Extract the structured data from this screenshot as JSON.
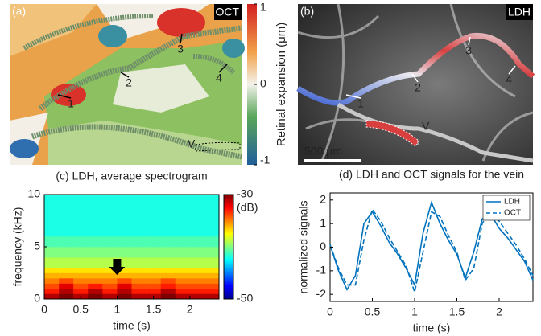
{
  "images": [
    {
      "label": "(a)",
      "tag": "OCT",
      "markers": [
        "1",
        "2",
        "3",
        "4"
      ],
      "vein": "V",
      "colorbar": {
        "label": "Retinal expansion (μm)",
        "lim": [
          -1,
          1
        ],
        "ticks": [
          1,
          0,
          -1
        ]
      }
    },
    {
      "label": "(b)",
      "tag": "LDH",
      "markers": [
        "1",
        "2",
        "3",
        "4"
      ],
      "vein": "V",
      "scalebar": "500 μm"
    }
  ],
  "chart_data": [
    {
      "type": "heatmap",
      "title": "(c) LDH, average spectrogram",
      "xlabel": "time (s)",
      "ylabel": "frequency (kHz)",
      "xbins": [
        0,
        0.2,
        0.4,
        0.6,
        0.8,
        1.0,
        1.2,
        1.4,
        1.6,
        1.8,
        2.0,
        2.2,
        2.4
      ],
      "ybins": [
        0,
        0.5,
        1,
        1.5,
        2,
        2.5,
        3,
        4,
        5,
        6,
        8,
        10
      ],
      "z": [
        [
          -31,
          -30,
          -31,
          -30,
          -31,
          -30,
          -31,
          -31,
          -30,
          -31,
          -31,
          -31
        ],
        [
          -33,
          -31,
          -33,
          -31,
          -33,
          -31,
          -33,
          -33,
          -31,
          -33,
          -33,
          -33
        ],
        [
          -34,
          -32,
          -34,
          -33,
          -34,
          -32,
          -34,
          -34,
          -33,
          -34,
          -34,
          -34
        ],
        [
          -35,
          -34,
          -35,
          -35,
          -35,
          -34,
          -35,
          -35,
          -34,
          -35,
          -35,
          -35
        ],
        [
          -36,
          -36,
          -36,
          -36,
          -36,
          -36,
          -36,
          -36,
          -36,
          -36,
          -36,
          -36
        ],
        [
          -37,
          -37,
          -37,
          -37,
          -37,
          -37,
          -37,
          -37,
          -37,
          -37,
          -37,
          -37
        ],
        [
          -39,
          -39,
          -39,
          -39,
          -39,
          -39,
          -39,
          -39,
          -39,
          -39,
          -39,
          -39
        ],
        [
          -40,
          -40,
          -40,
          -40,
          -40,
          -40,
          -40,
          -40,
          -40,
          -40,
          -40,
          -40
        ],
        [
          -41,
          -41,
          -41,
          -41,
          -41,
          -41,
          -41,
          -41,
          -41,
          -41,
          -41,
          -41
        ],
        [
          -42,
          -42,
          -42,
          -42,
          -42,
          -42,
          -42,
          -42,
          -42,
          -42,
          -42,
          -42
        ],
        [
          -42,
          -42,
          -42,
          -42,
          -42,
          -42,
          -42,
          -42,
          -42,
          -42,
          -42,
          -42
        ]
      ],
      "xlim": [
        0,
        2.4
      ],
      "ylim": [
        0,
        10
      ],
      "xticks": [
        0,
        0.5,
        1,
        1.5,
        2
      ],
      "yticks": [
        0,
        5,
        10
      ],
      "colorbar": {
        "label": "(dB)",
        "lim": [
          -50,
          -30
        ],
        "ticks": [
          -30,
          -50
        ]
      }
    },
    {
      "type": "line",
      "title": "(d) LDH and OCT signals for the vein",
      "xlabel": "time (s)",
      "ylabel": "normalized signals",
      "x": [
        0,
        0.1,
        0.2,
        0.3,
        0.4,
        0.5,
        0.6,
        0.7,
        0.8,
        0.9,
        1.0,
        1.1,
        1.2,
        1.3,
        1.4,
        1.5,
        1.6,
        1.7,
        1.8,
        1.9,
        2.0,
        2.1,
        2.2,
        2.3,
        2.4
      ],
      "series": [
        {
          "name": "LDH",
          "color": "#0072bd",
          "dash": false,
          "values": [
            0.1,
            -1.0,
            -1.8,
            -1.2,
            1.0,
            1.5,
            0.9,
            0.2,
            -0.3,
            -0.9,
            -1.6,
            0.6,
            1.9,
            1.0,
            0.3,
            -0.3,
            -1.3,
            -0.2,
            1.2,
            1.4,
            0.8,
            0.4,
            -0.1,
            -0.6,
            -1.4
          ]
        },
        {
          "name": "OCT",
          "color": "#0072bd",
          "dash": true,
          "values": [
            0.1,
            -0.9,
            -1.6,
            -1.6,
            0.3,
            1.6,
            1.1,
            0.4,
            -0.2,
            -0.8,
            -1.9,
            -0.2,
            1.5,
            1.3,
            0.5,
            -0.2,
            -1.4,
            -0.9,
            1.0,
            1.6,
            1.1,
            0.6,
            0.1,
            -0.5,
            -1.2
          ]
        }
      ],
      "xlim": [
        0,
        2.4
      ],
      "ylim": [
        -2.3,
        2.3
      ],
      "xticks": [
        0,
        0.5,
        1,
        1.5,
        2
      ],
      "yticks": [
        -2,
        -1,
        0,
        1,
        2
      ],
      "legend": "upper right"
    }
  ]
}
